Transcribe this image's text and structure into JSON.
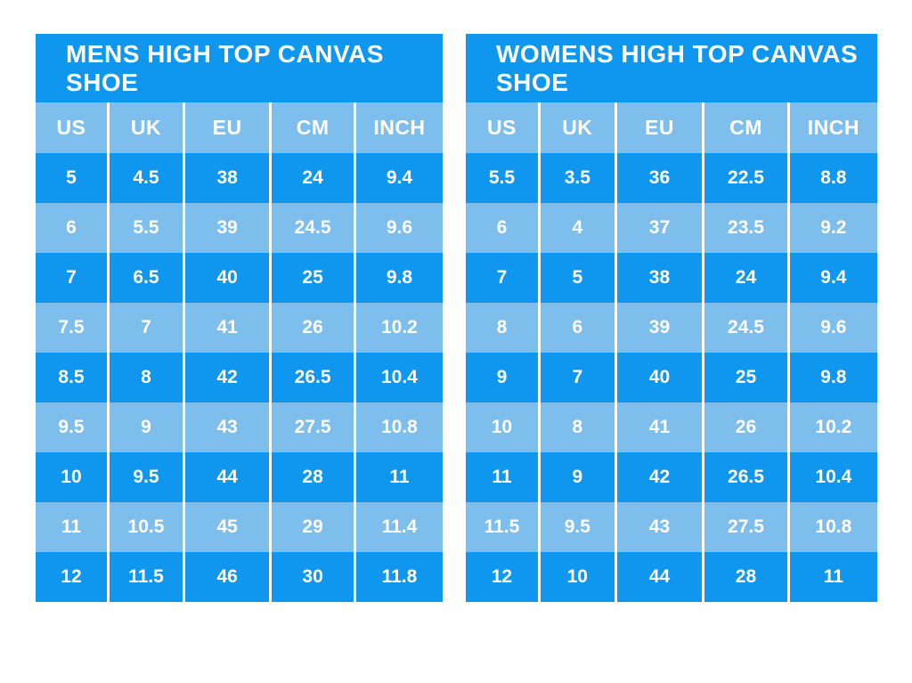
{
  "colors": {
    "row_dark": "#0f96ee",
    "row_light": "#7dbeec",
    "grid_line": "#ffffff",
    "text": "#ffffff",
    "page_background": "#ffffff"
  },
  "chart_data": [
    {
      "type": "table",
      "title": "MENS HIGH TOP CANVAS SHOE",
      "columns": [
        "US",
        "UK",
        "EU",
        "CM",
        "INCH"
      ],
      "rows": [
        [
          "5",
          "4.5",
          "38",
          "24",
          "9.4"
        ],
        [
          "6",
          "5.5",
          "39",
          "24.5",
          "9.6"
        ],
        [
          "7",
          "6.5",
          "40",
          "25",
          "9.8"
        ],
        [
          "7.5",
          "7",
          "41",
          "26",
          "10.2"
        ],
        [
          "8.5",
          "8",
          "42",
          "26.5",
          "10.4"
        ],
        [
          "9.5",
          "9",
          "43",
          "27.5",
          "10.8"
        ],
        [
          "10",
          "9.5",
          "44",
          "28",
          "11"
        ],
        [
          "11",
          "10.5",
          "45",
          "29",
          "11.4"
        ],
        [
          "12",
          "11.5",
          "46",
          "30",
          "11.8"
        ]
      ]
    },
    {
      "type": "table",
      "title": "WOMENS HIGH TOP CANVAS SHOE",
      "columns": [
        "US",
        "UK",
        "EU",
        "CM",
        "INCH"
      ],
      "rows": [
        [
          "5.5",
          "3.5",
          "36",
          "22.5",
          "8.8"
        ],
        [
          "6",
          "4",
          "37",
          "23.5",
          "9.2"
        ],
        [
          "7",
          "5",
          "38",
          "24",
          "9.4"
        ],
        [
          "8",
          "6",
          "39",
          "24.5",
          "9.6"
        ],
        [
          "9",
          "7",
          "40",
          "25",
          "9.8"
        ],
        [
          "10",
          "8",
          "41",
          "26",
          "10.2"
        ],
        [
          "11",
          "9",
          "42",
          "26.5",
          "10.4"
        ],
        [
          "11.5",
          "9.5",
          "43",
          "27.5",
          "10.8"
        ],
        [
          "12",
          "10",
          "44",
          "28",
          "11"
        ]
      ]
    }
  ]
}
